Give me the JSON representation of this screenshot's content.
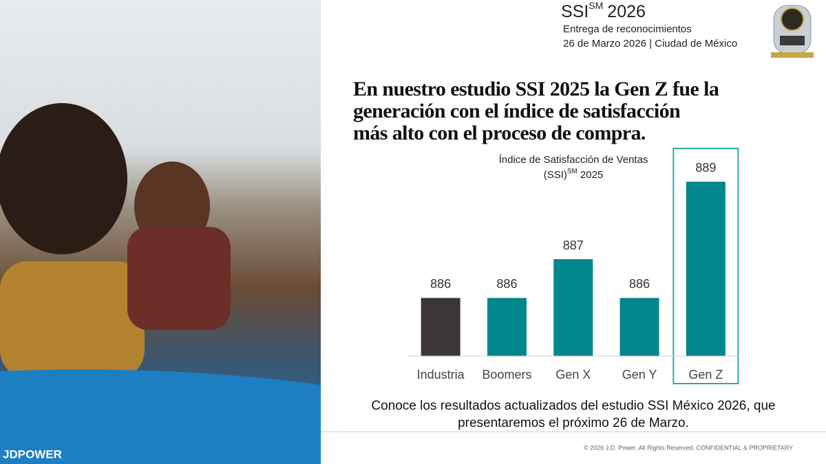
{
  "header": {
    "brand": "SSI",
    "brand_sup": "SM",
    "year": "2026",
    "line1": "Entrega de reconocimientos",
    "line2": "26 de Marzo 2026 | Ciudad de México"
  },
  "headline": [
    "En nuestro estudio SSI 2025 la Gen Z fue la",
    "generación con el índice de satisfacción",
    "más alto con el proceso de compra."
  ],
  "chart_data": {
    "type": "bar",
    "title": "Índice de Satisfacción de Ventas",
    "title_line2": [
      "(SSI)",
      "SM",
      "2025"
    ],
    "categories": [
      "Industria",
      "Boomers",
      "Gen X",
      "Gen Y",
      "Gen Z"
    ],
    "values": [
      886,
      886,
      887,
      886,
      889
    ],
    "colors": [
      "#3b3536",
      "#00868b",
      "#00868b",
      "#00868b",
      "#00868b"
    ],
    "ylim": [
      884.5,
      890
    ],
    "highlight": "Gen Z",
    "highlight_color": "#2aa9a6"
  },
  "cta": [
    "Conoce los resultados actualizados del estudio SSI México 2026, que",
    "presentaremos el próximo 26 de Marzo."
  ],
  "footer": {
    "logo": "JDPOWER",
    "copyright": "© 2026 J.D. Power. All Rights Reserved. CONFIDENTIAL & PROPRIETARY"
  }
}
